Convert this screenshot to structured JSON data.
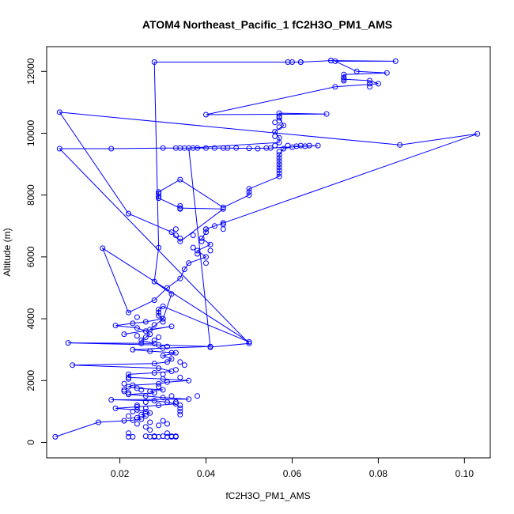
{
  "chart_data": {
    "type": "scatter",
    "title": "ATOM4 Northeast_Pacific_1 fC2H3O_PM1_AMS",
    "xlabel": "fC2H3O_PM1_AMS",
    "ylabel": "Altitude (m)",
    "xlim": [
      0.003,
      0.106
    ],
    "ylim": [
      -500,
      12800
    ],
    "xticks": [
      0.02,
      0.04,
      0.06,
      0.08,
      0.1
    ],
    "xtick_labels": [
      "0.02",
      "0.04",
      "0.06",
      "0.08",
      "0.10"
    ],
    "yticks": [
      0,
      2000,
      4000,
      6000,
      8000,
      10000,
      12000
    ],
    "ytick_labels": [
      "0",
      "2000",
      "4000",
      "6000",
      "8000",
      "10000",
      "12000"
    ],
    "grid": false,
    "color": "#0000ff",
    "series": [
      {
        "name": "fC2H3O_PM1_AMS vs Altitude",
        "style": "line+points",
        "points": [
          [
            0.005,
            180
          ],
          [
            0.015,
            650
          ],
          [
            0.021,
            700
          ],
          [
            0.023,
            720
          ],
          [
            0.025,
            750
          ],
          [
            0.024,
            800
          ],
          [
            0.026,
            850
          ],
          [
            0.025,
            900
          ],
          [
            0.027,
            950
          ],
          [
            0.026,
            1000
          ],
          [
            0.024,
            1050
          ],
          [
            0.019,
            1100
          ],
          [
            0.024,
            1150
          ],
          [
            0.029,
            1200
          ],
          [
            0.033,
            1250
          ],
          [
            0.031,
            1300
          ],
          [
            0.028,
            1350
          ],
          [
            0.018,
            1380
          ],
          [
            0.036,
            1400
          ],
          [
            0.03,
            1450
          ],
          [
            0.026,
            1500
          ],
          [
            0.022,
            1550
          ],
          [
            0.028,
            1600
          ],
          [
            0.027,
            1650
          ],
          [
            0.03,
            1700
          ],
          [
            0.024,
            1750
          ],
          [
            0.022,
            1800
          ],
          [
            0.023,
            1850
          ],
          [
            0.029,
            1900
          ],
          [
            0.031,
            1950
          ],
          [
            0.036,
            2000
          ],
          [
            0.03,
            2050
          ],
          [
            0.022,
            2100
          ],
          [
            0.022,
            2200
          ],
          [
            0.028,
            2250
          ],
          [
            0.032,
            2300
          ],
          [
            0.029,
            2400
          ],
          [
            0.009,
            2500
          ],
          [
            0.028,
            2550
          ],
          [
            0.031,
            2600
          ],
          [
            0.032,
            2700
          ],
          [
            0.03,
            2800
          ],
          [
            0.033,
            2900
          ],
          [
            0.027,
            2950
          ],
          [
            0.023,
            3000
          ],
          [
            0.03,
            3050
          ],
          [
            0.041,
            3100
          ],
          [
            0.029,
            3150
          ],
          [
            0.008,
            3220
          ],
          [
            0.028,
            3200
          ],
          [
            0.025,
            3300
          ],
          [
            0.026,
            3400
          ],
          [
            0.027,
            3500
          ],
          [
            0.026,
            3600
          ],
          [
            0.024,
            3700
          ],
          [
            0.019,
            3780
          ],
          [
            0.023,
            3850
          ],
          [
            0.026,
            3900
          ],
          [
            0.03,
            4000
          ],
          [
            0.029,
            4100
          ],
          [
            0.029,
            4200
          ],
          [
            0.029,
            4300
          ],
          [
            0.03,
            4400
          ],
          [
            0.05,
            3250
          ],
          [
            0.016,
            6280
          ],
          [
            0.022,
            4200
          ],
          [
            0.028,
            4600
          ],
          [
            0.031,
            5000
          ],
          [
            0.034,
            5300
          ],
          [
            0.035,
            5600
          ],
          [
            0.036,
            5800
          ],
          [
            0.04,
            6000
          ],
          [
            0.038,
            6200
          ],
          [
            0.041,
            6400
          ],
          [
            0.039,
            6600
          ],
          [
            0.04,
            6800
          ],
          [
            0.04,
            6900
          ],
          [
            0.042,
            7000
          ],
          [
            0.04,
            6900
          ],
          [
            0.103,
            9980
          ],
          [
            0.085,
            9620
          ],
          [
            0.006,
            10680
          ],
          [
            0.022,
            7400
          ],
          [
            0.032,
            6800
          ],
          [
            0.034,
            6500
          ],
          [
            0.044,
            7550
          ],
          [
            0.034,
            7580
          ],
          [
            0.029,
            7900
          ],
          [
            0.029,
            8100
          ],
          [
            0.034,
            8500
          ],
          [
            0.044,
            7600
          ],
          [
            0.05,
            8000
          ],
          [
            0.05,
            8200
          ],
          [
            0.057,
            8600
          ],
          [
            0.057,
            8800
          ],
          [
            0.057,
            9000
          ],
          [
            0.057,
            9300
          ],
          [
            0.058,
            9500
          ],
          [
            0.061,
            9580
          ],
          [
            0.066,
            9600
          ],
          [
            0.055,
            9520
          ],
          [
            0.05,
            9510
          ],
          [
            0.045,
            9520
          ],
          [
            0.04,
            9520
          ],
          [
            0.035,
            9520
          ],
          [
            0.03,
            9520
          ],
          [
            0.018,
            9500
          ],
          [
            0.006,
            9500
          ],
          [
            0.05,
            3200
          ],
          [
            0.041,
            3080
          ],
          [
            0.036,
            9520
          ],
          [
            0.057,
            9700
          ],
          [
            0.057,
            9850
          ],
          [
            0.056,
            10050
          ],
          [
            0.058,
            10250
          ],
          [
            0.057,
            10500
          ],
          [
            0.057,
            10650
          ],
          [
            0.068,
            10620
          ],
          [
            0.04,
            10600
          ],
          [
            0.07,
            11500
          ],
          [
            0.08,
            11600
          ],
          [
            0.078,
            11700
          ],
          [
            0.072,
            11750
          ],
          [
            0.072,
            11800
          ],
          [
            0.072,
            11900
          ],
          [
            0.082,
            11950
          ],
          [
            0.075,
            12000
          ],
          [
            0.07,
            12330
          ],
          [
            0.084,
            12330
          ],
          [
            0.069,
            12350
          ],
          [
            0.062,
            12300
          ],
          [
            0.059,
            12300
          ],
          [
            0.028,
            12300
          ],
          [
            0.029,
            6300
          ],
          [
            0.028,
            5200
          ],
          [
            0.032,
            4800
          ],
          [
            0.03,
            4000
          ],
          [
            0.027,
            3650
          ],
          [
            0.032,
            3750
          ],
          [
            0.021,
            3500
          ]
        ]
      }
    ],
    "extra_points": [
      [
        0.022,
        180
      ],
      [
        0.023,
        180
      ],
      [
        0.027,
        180
      ],
      [
        0.028,
        180
      ],
      [
        0.029,
        180
      ],
      [
        0.031,
        180
      ],
      [
        0.032,
        180
      ],
      [
        0.033,
        180
      ],
      [
        0.026,
        200
      ],
      [
        0.028,
        200
      ],
      [
        0.03,
        200
      ],
      [
        0.032,
        200
      ],
      [
        0.033,
        200
      ],
      [
        0.022,
        300
      ],
      [
        0.031,
        300
      ],
      [
        0.027,
        400
      ],
      [
        0.026,
        500
      ],
      [
        0.029,
        550
      ],
      [
        0.031,
        600
      ],
      [
        0.027,
        650
      ],
      [
        0.03,
        700
      ],
      [
        0.034,
        900
      ],
      [
        0.034,
        1000
      ],
      [
        0.034,
        1100
      ],
      [
        0.034,
        1200
      ],
      [
        0.033,
        1300
      ],
      [
        0.032,
        1500
      ],
      [
        0.038,
        1500
      ],
      [
        0.022,
        1600
      ],
      [
        0.021,
        1650
      ],
      [
        0.021,
        1700
      ],
      [
        0.021,
        1900
      ],
      [
        0.022,
        2050
      ],
      [
        0.03,
        2200
      ],
      [
        0.034,
        2100
      ],
      [
        0.033,
        2350
      ],
      [
        0.035,
        2500
      ],
      [
        0.034,
        2600
      ],
      [
        0.032,
        2900
      ],
      [
        0.028,
        3300
      ],
      [
        0.029,
        3400
      ],
      [
        0.024,
        3450
      ],
      [
        0.028,
        3800
      ],
      [
        0.03,
        3900
      ],
      [
        0.024,
        4050
      ],
      [
        0.031,
        3100
      ],
      [
        0.025,
        3200
      ],
      [
        0.029,
        1800
      ],
      [
        0.025,
        1700
      ],
      [
        0.024,
        1200
      ],
      [
        0.026,
        1100
      ],
      [
        0.023,
        1000
      ],
      [
        0.022,
        850
      ],
      [
        0.024,
        600
      ],
      [
        0.026,
        1300
      ],
      [
        0.04,
        5800
      ],
      [
        0.041,
        6200
      ],
      [
        0.038,
        6100
      ],
      [
        0.037,
        6300
      ],
      [
        0.039,
        6500
      ],
      [
        0.037,
        6700
      ],
      [
        0.033,
        6900
      ],
      [
        0.033,
        6700
      ],
      [
        0.034,
        6600
      ],
      [
        0.044,
        6900
      ],
      [
        0.044,
        7050
      ],
      [
        0.044,
        7100
      ],
      [
        0.034,
        7550
      ],
      [
        0.034,
        7650
      ],
      [
        0.029,
        7950
      ],
      [
        0.029,
        8050
      ],
      [
        0.05,
        8100
      ],
      [
        0.057,
        8700
      ],
      [
        0.057,
        8900
      ],
      [
        0.057,
        9100
      ],
      [
        0.057,
        9200
      ],
      [
        0.057,
        9400
      ],
      [
        0.059,
        9600
      ],
      [
        0.06,
        9550
      ],
      [
        0.062,
        9600
      ],
      [
        0.063,
        9580
      ],
      [
        0.064,
        9600
      ],
      [
        0.056,
        9600
      ],
      [
        0.054,
        9520
      ],
      [
        0.052,
        9500
      ],
      [
        0.047,
        9520
      ],
      [
        0.044,
        9520
      ],
      [
        0.042,
        9520
      ],
      [
        0.038,
        9520
      ],
      [
        0.037,
        9520
      ],
      [
        0.034,
        9520
      ],
      [
        0.033,
        9520
      ],
      [
        0.056,
        9900
      ],
      [
        0.057,
        10200
      ],
      [
        0.056,
        10350
      ],
      [
        0.057,
        10400
      ],
      [
        0.057,
        10550
      ],
      [
        0.078,
        11500
      ],
      [
        0.078,
        11600
      ],
      [
        0.072,
        11700
      ],
      [
        0.06,
        12300
      ],
      [
        0.062,
        12300
      ],
      [
        0.069,
        12350
      ]
    ]
  }
}
